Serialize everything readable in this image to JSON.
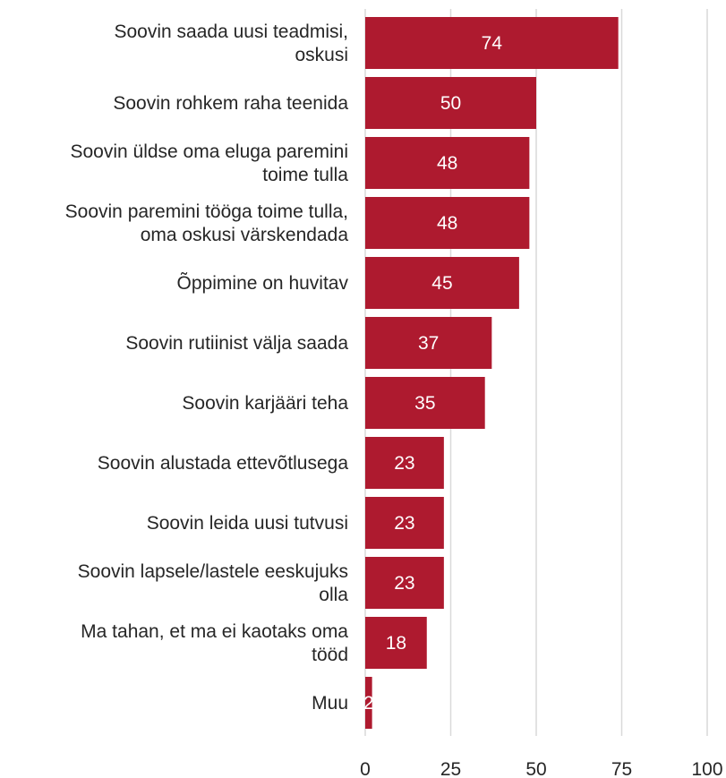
{
  "chart_data": {
    "type": "bar",
    "orientation": "horizontal",
    "categories": [
      [
        "Soovin saada uusi teadmisi,",
        "oskusi"
      ],
      [
        "Soovin rohkem raha teenida"
      ],
      [
        "Soovin üldse oma eluga paremini",
        "toime tulla"
      ],
      [
        "Soovin paremini tööga toime tulla,",
        "oma oskusi värskendada"
      ],
      [
        "Õppimine on huvitav"
      ],
      [
        "Soovin rutiinist välja saada"
      ],
      [
        "Soovin karjääri teha"
      ],
      [
        "Soovin alustada ettevõtlusega"
      ],
      [
        "Soovin leida uusi tutvusi"
      ],
      [
        "Soovin lapsele/lastele eeskujuks",
        "olla"
      ],
      [
        "Ma tahan, et ma ei kaotaks oma",
        "tööd"
      ],
      [
        "Muu"
      ]
    ],
    "values": [
      74,
      50,
      48,
      48,
      45,
      37,
      35,
      23,
      23,
      23,
      18,
      2
    ],
    "value_labels": [
      "74",
      "50",
      "48",
      "48",
      "45",
      "37",
      "35",
      "23",
      "23",
      "23",
      "18",
      "2"
    ],
    "xlim": [
      0,
      100
    ],
    "xticks": [
      "0",
      "25",
      "50",
      "75",
      "100"
    ],
    "grid": "vertical",
    "bar_color": "#ae1a2f",
    "label_color": "#ffffff"
  }
}
